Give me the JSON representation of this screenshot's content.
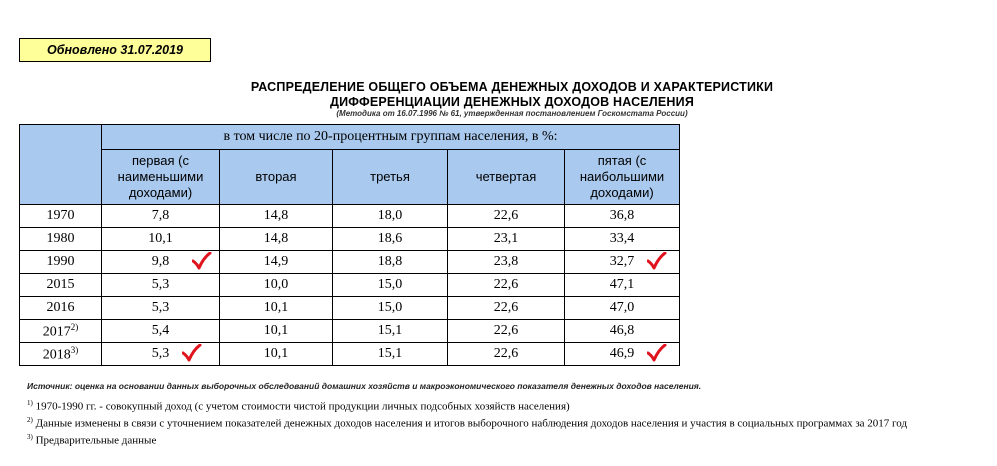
{
  "updated": "Обновлено  31.07.2019",
  "title": {
    "line1": "РАСПРЕДЕЛЕНИЕ  ОБЩЕГО ОБЪЕМА ДЕНЕЖНЫХ ДОХОДОВ И ХАРАКТЕРИСТИКИ",
    "line2": "ДИФФЕРЕНЦИАЦИИ  ДЕНЕЖНЫХ ДОХОДОВ НАСЕЛЕНИЯ",
    "method": "(Методика от 16.07.1996 № 61, утвержденная постановлением Госкомстата России)"
  },
  "table": {
    "group_header": "в том числе по 20-процентным группам населения, в %:",
    "columns": [
      [
        "первая (с",
        "наименьшими",
        "доходами)"
      ],
      [
        "вторая"
      ],
      [
        "третья"
      ],
      [
        "четвертая"
      ],
      [
        "пятая (с",
        "наибольшими",
        "доходами)"
      ]
    ],
    "rows": [
      {
        "year": "1970",
        "sup": "",
        "values": [
          "7,8",
          "14,8",
          "18,0",
          "22,6",
          "36,8"
        ]
      },
      {
        "year": "1980",
        "sup": "",
        "values": [
          "10,1",
          "14,8",
          "18,6",
          "23,1",
          "33,4"
        ]
      },
      {
        "year": "1990",
        "sup": "",
        "values": [
          "9,8",
          "14,9",
          "18,8",
          "23,8",
          "32,7"
        ]
      },
      {
        "year": "2015",
        "sup": "",
        "values": [
          "5,3",
          "10,0",
          "15,0",
          "22,6",
          "47,1"
        ]
      },
      {
        "year": "2016",
        "sup": "",
        "values": [
          "5,3",
          "10,1",
          "15,0",
          "22,6",
          "47,0"
        ]
      },
      {
        "year": "2017",
        "sup": "2)",
        "values": [
          "5,4",
          "10,1",
          "15,1",
          "22,6",
          "46,8"
        ]
      },
      {
        "year": "2018",
        "sup": "3)",
        "values": [
          "5,3",
          "10,1",
          "15,1",
          "22,6",
          "46,9"
        ]
      }
    ]
  },
  "source": "Источник: оценка на основании данных выборочных обследований домашних хозяйств и макроэкономического показателя денежных доходов населения.",
  "notes": [
    {
      "sup": "1)",
      "text": " 1970-1990 гг. - совокупный доход (с учетом стоимости чистой продукции личных подсобных хозяйств населения)"
    },
    {
      "sup": "2)",
      "text": " Данные изменены в связи с уточнением показателей денежных доходов населения и итогов выборочного наблюдения доходов населения и участия в социальных программах за 2017 год"
    },
    {
      "sup": "3)",
      "text": " Предварительные данные"
    }
  ],
  "colors": {
    "header_blue": "#a9c9ee",
    "updated_bg": "#ffff99",
    "checkmark": "#e0141e"
  }
}
